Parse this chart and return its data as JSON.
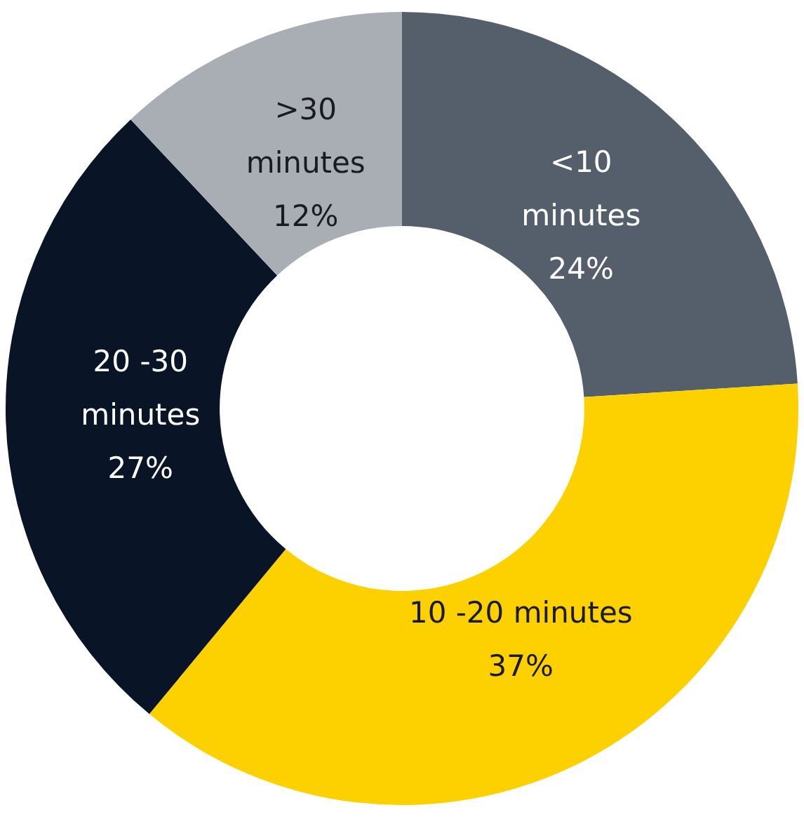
{
  "chart_data": {
    "type": "donut",
    "categories": [
      "<10 minutes",
      "10 -20 minutes",
      "20 -30 minutes",
      ">30 minutes"
    ],
    "values": [
      24,
      37,
      27,
      12
    ],
    "value_labels": [
      "24%",
      "37%",
      "27%",
      "12%"
    ],
    "colors": [
      "#555f6b",
      "#fdd100",
      "#091527",
      "#a8aeb4"
    ],
    "legend": false
  }
}
